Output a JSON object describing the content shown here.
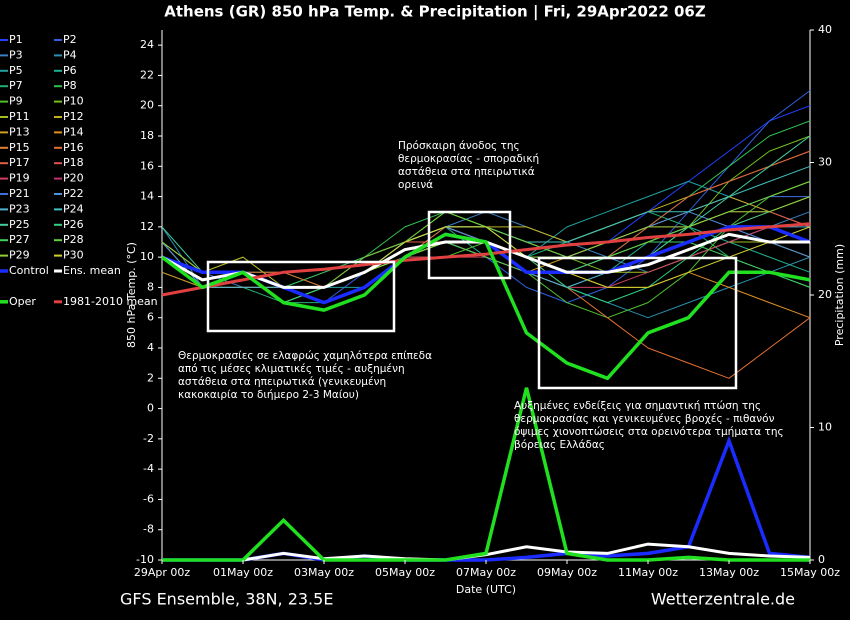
{
  "chart_data": {
    "type": "line",
    "title": "Athens  (GR)  850 hPa Temp. & Precipitation | Fri, 29Apr2022 06Z",
    "subtitle": "GFS Ensemble, 38N, 23.5E",
    "source": "Wetterzentrale.de",
    "x_label": "Date (UTC)",
    "y_label": "850 hPa Temp. (°C)",
    "y2_label": "Precipitation (mm)",
    "categories": [
      "29Apr 00z",
      null,
      "01May 00z",
      null,
      "03May 00z",
      null,
      "05May 00z",
      null,
      "07May 00z",
      null,
      "09May 00z",
      null,
      "11May 00z",
      null,
      "13May 00z",
      null,
      "15May 00z"
    ],
    "ylim": [
      -10,
      25
    ],
    "yticks": [
      -10,
      -8,
      -6,
      -4,
      -2,
      0,
      2,
      4,
      6,
      8,
      10,
      12,
      14,
      16,
      18,
      20,
      22,
      24
    ],
    "y2lim": [
      0,
      40
    ],
    "y2ticks": [
      0,
      10,
      20,
      30,
      40
    ],
    "grid": false,
    "legend": "left",
    "series": [
      {
        "name": "P1",
        "color": "#2040ff",
        "linewidth": 1,
        "values": [
          10,
          9,
          9,
          8,
          8,
          9,
          11,
          12,
          12,
          11,
          10,
          11,
          13,
          15,
          17,
          19,
          20
        ]
      },
      {
        "name": "P2",
        "color": "#3060e0",
        "linewidth": 1,
        "values": [
          11,
          8,
          9,
          8,
          7,
          9,
          10,
          11,
          10,
          8,
          7,
          8,
          10,
          13,
          16,
          19,
          21
        ]
      },
      {
        "name": "P3",
        "color": "#3a80c0",
        "linewidth": 1,
        "values": [
          10,
          9,
          8,
          8,
          9,
          10,
          11,
          12,
          13,
          12,
          11,
          10,
          9,
          10,
          11,
          12,
          13
        ]
      },
      {
        "name": "P4",
        "color": "#2a90b0",
        "linewidth": 1,
        "values": [
          12,
          8,
          9,
          7,
          8,
          9,
          10,
          11,
          11,
          9,
          8,
          7,
          6,
          7,
          8,
          9,
          10
        ]
      },
      {
        "name": "P5",
        "color": "#20a0a0",
        "linewidth": 1,
        "values": [
          10,
          9,
          9,
          8,
          8,
          8,
          10,
          12,
          11,
          10,
          12,
          13,
          14,
          15,
          14,
          13,
          12
        ]
      },
      {
        "name": "P6",
        "color": "#20b090",
        "linewidth": 1,
        "values": [
          9,
          8,
          9,
          9,
          8,
          9,
          11,
          12,
          10,
          9,
          8,
          9,
          11,
          12,
          11,
          10,
          9
        ]
      },
      {
        "name": "P7",
        "color": "#20b070",
        "linewidth": 1,
        "values": [
          10,
          8,
          8,
          7,
          7,
          8,
          10,
          11,
          11,
          10,
          11,
          12,
          13,
          12,
          10,
          9,
          8
        ]
      },
      {
        "name": "P8",
        "color": "#30c050",
        "linewidth": 1,
        "values": [
          11,
          9,
          10,
          8,
          9,
          10,
          12,
          13,
          12,
          11,
          10,
          10,
          12,
          14,
          16,
          18,
          19
        ]
      },
      {
        "name": "P9",
        "color": "#50c030",
        "linewidth": 1,
        "values": [
          10,
          8,
          9,
          8,
          7,
          8,
          10,
          10,
          11,
          9,
          7,
          6,
          7,
          9,
          12,
          14,
          15
        ]
      },
      {
        "name": "P10",
        "color": "#70c020",
        "linewidth": 1,
        "values": [
          10,
          9,
          9,
          8,
          8,
          9,
          11,
          12,
          12,
          11,
          10,
          9,
          10,
          12,
          15,
          17,
          18
        ]
      },
      {
        "name": "P11",
        "color": "#a0c020",
        "linewidth": 1,
        "values": [
          11,
          8,
          8,
          8,
          8,
          9,
          10,
          11,
          11,
          10,
          9,
          9,
          9,
          10,
          11,
          11,
          10
        ]
      },
      {
        "name": "P12",
        "color": "#c0b020",
        "linewidth": 1,
        "values": [
          10,
          9,
          10,
          8,
          8,
          10,
          11,
          13,
          12,
          12,
          11,
          12,
          13,
          14,
          15,
          16,
          17
        ]
      },
      {
        "name": "P13",
        "color": "#d0a020",
        "linewidth": 1,
        "values": [
          10,
          8,
          9,
          7,
          8,
          9,
          10,
          11,
          10,
          9,
          10,
          11,
          12,
          13,
          14,
          13,
          12
        ]
      },
      {
        "name": "P14",
        "color": "#e09020",
        "linewidth": 1,
        "values": [
          9,
          8,
          9,
          8,
          8,
          9,
          11,
          12,
          12,
          10,
          9,
          8,
          8,
          9,
          8,
          7,
          6
        ]
      },
      {
        "name": "P15",
        "color": "#e08030",
        "linewidth": 1,
        "values": [
          10,
          8,
          8,
          8,
          7,
          8,
          10,
          11,
          10,
          9,
          9,
          10,
          11,
          12,
          13,
          14,
          15
        ]
      },
      {
        "name": "P16",
        "color": "#e07030",
        "linewidth": 1,
        "values": [
          10,
          9,
          9,
          9,
          8,
          9,
          10,
          12,
          11,
          10,
          8,
          6,
          4,
          3,
          2,
          4,
          6
        ]
      },
      {
        "name": "P17",
        "color": "#e06040",
        "linewidth": 1,
        "values": [
          11,
          9,
          9,
          8,
          8,
          9,
          11,
          11,
          11,
          10,
          9,
          10,
          12,
          14,
          15,
          16,
          17
        ]
      },
      {
        "name": "P18",
        "color": "#e05050",
        "linewidth": 1,
        "values": [
          10,
          8,
          9,
          8,
          8,
          10,
          11,
          12,
          11,
          10,
          9,
          9,
          10,
          11,
          12,
          13,
          12
        ]
      },
      {
        "name": "P19",
        "color": "#d04060",
        "linewidth": 1,
        "values": [
          10,
          8,
          9,
          8,
          7,
          8,
          10,
          10,
          10,
          9,
          8,
          8,
          9,
          10,
          11,
          12,
          11
        ]
      },
      {
        "name": "P20",
        "color": "#c03070",
        "linewidth": 1,
        "values": [
          10,
          9,
          9,
          8,
          8,
          9,
          11,
          12,
          12,
          11,
          10,
          11,
          12,
          12,
          13,
          13,
          14
        ]
      },
      {
        "name": "P21",
        "color": "#4070e0",
        "linewidth": 1,
        "values": [
          10,
          9,
          9,
          8,
          8,
          9,
          10,
          11,
          11,
          10,
          9,
          10,
          11,
          12,
          13,
          14,
          14
        ]
      },
      {
        "name": "P22",
        "color": "#5090e0",
        "linewidth": 1,
        "values": [
          11,
          8,
          9,
          8,
          8,
          9,
          11,
          12,
          11,
          10,
          10,
          11,
          12,
          13,
          12,
          11,
          10
        ]
      },
      {
        "name": "P23",
        "color": "#50b0d0",
        "linewidth": 1,
        "values": [
          10,
          8,
          8,
          8,
          7,
          8,
          10,
          11,
          11,
          9,
          8,
          9,
          10,
          11,
          12,
          12,
          12
        ]
      },
      {
        "name": "P24",
        "color": "#40c0c0",
        "linewidth": 1,
        "values": [
          10,
          9,
          9,
          8,
          8,
          9,
          11,
          12,
          12,
          11,
          11,
          12,
          13,
          13,
          14,
          15,
          16
        ]
      },
      {
        "name": "P25",
        "color": "#40d0a0",
        "linewidth": 1,
        "values": [
          12,
          9,
          9,
          8,
          8,
          9,
          10,
          11,
          11,
          10,
          9,
          9,
          10,
          12,
          14,
          16,
          18
        ]
      },
      {
        "name": "P26",
        "color": "#30d080",
        "linewidth": 1,
        "values": [
          10,
          8,
          9,
          7,
          8,
          9,
          11,
          12,
          12,
          10,
          8,
          7,
          8,
          10,
          12,
          13,
          14
        ]
      },
      {
        "name": "P27",
        "color": "#40d060",
        "linewidth": 1,
        "values": [
          10,
          9,
          9,
          8,
          8,
          9,
          10,
          11,
          10,
          9,
          9,
          10,
          11,
          11,
          10,
          9,
          8
        ]
      },
      {
        "name": "P28",
        "color": "#60d040",
        "linewidth": 1,
        "values": [
          10,
          8,
          9,
          8,
          8,
          10,
          11,
          13,
          12,
          11,
          10,
          10,
          11,
          12,
          13,
          14,
          15
        ]
      },
      {
        "name": "P29",
        "color": "#90d030",
        "linewidth": 1,
        "values": [
          11,
          9,
          9,
          8,
          8,
          9,
          10,
          11,
          11,
          10,
          10,
          11,
          12,
          12,
          13,
          13,
          14
        ]
      },
      {
        "name": "P30",
        "color": "#d0d030",
        "linewidth": 1,
        "values": [
          10,
          8,
          9,
          8,
          8,
          9,
          11,
          12,
          12,
          10,
          9,
          8,
          8,
          9,
          10,
          11,
          12
        ]
      },
      {
        "name": "Control",
        "color": "#1a2cff",
        "linewidth": 3.5,
        "values": [
          10,
          9,
          9,
          8,
          7,
          8,
          10,
          11.5,
          11,
          9,
          9,
          9,
          10,
          11,
          12,
          12,
          11
        ],
        "precip": [
          0,
          0,
          0,
          0.5,
          0,
          0.3,
          0,
          0,
          0,
          0.2,
          0.5,
          0.3,
          0.5,
          1,
          9,
          0.5,
          0.2
        ]
      },
      {
        "name": "Ens. mean",
        "color": "#ffffff",
        "linewidth": 3,
        "values": [
          10,
          8.5,
          9,
          8,
          8,
          9,
          10.5,
          11,
          11,
          10,
          9,
          9,
          9.5,
          10.5,
          11.5,
          11,
          11
        ],
        "precip": [
          0,
          0,
          0,
          0.5,
          0.1,
          0.3,
          0.1,
          0,
          0.4,
          1,
          0.6,
          0.5,
          1.2,
          1,
          0.5,
          0.3,
          0.2
        ]
      },
      {
        "name": "1981-2010 mean",
        "color": "#e04040",
        "linewidth": 3,
        "values": [
          7.5,
          8,
          8.5,
          9,
          9.2,
          9.5,
          9.8,
          10,
          10.2,
          10.5,
          10.8,
          11,
          11.3,
          11.5,
          11.8,
          12,
          12.2
        ]
      },
      {
        "name": "Oper",
        "color": "#20e020",
        "linewidth": 3.5,
        "values": [
          10,
          8,
          9,
          7,
          6.5,
          7.5,
          10,
          11.5,
          11,
          5,
          3,
          2,
          5,
          6,
          9,
          9,
          8.5
        ],
        "precip": [
          0,
          0,
          0,
          3,
          0,
          0,
          0,
          0,
          0.5,
          13,
          0.5,
          0,
          0,
          0.2,
          0,
          0,
          0
        ]
      }
    ],
    "annotations": [
      {
        "lines": [
          "Θερμοκρασίες σε ελαφρώς χαμηλότερα επίπεδα",
          "από τις μέσες κλιματικές τιμές - αυξημένη",
          "αστάθεια στα ηπειρωτικά (γενικευμένη",
          "κακοκαιρία το διήμερο 2-3 Μαίου)"
        ]
      },
      {
        "lines": [
          "Πρόσκαιρη άνοδος της",
          "θερμοκρασίας - σποραδική",
          "αστάθεια στα ηπειρωτικά",
          "ορεινά"
        ]
      },
      {
        "lines": [
          "Αυξημένες ενδείξεις για σημαντική πτώση της",
          "θερμοκρασίας και γενικευμένες βροχές - πιθανόν",
          "όψιμες χιονοπτώσεις στα ορεινότερα τμήματα της",
          "βόρειας Ελλάδας"
        ]
      }
    ]
  }
}
